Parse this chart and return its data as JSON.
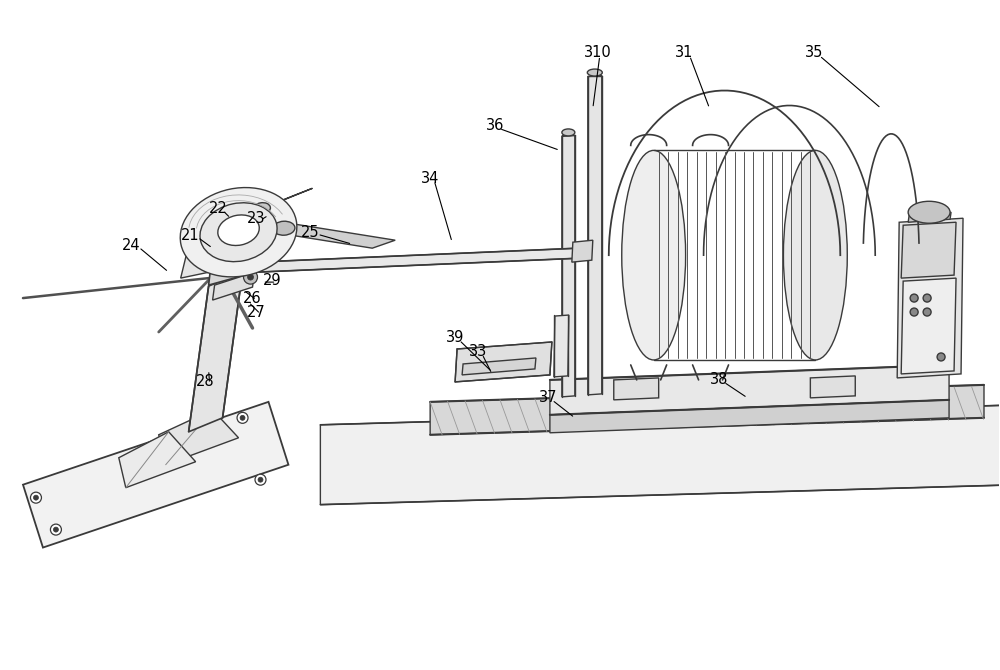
{
  "bg_color": "#ffffff",
  "line_color": "#3a3a3a",
  "lw": 1.0,
  "figsize": [
    10.0,
    6.7
  ],
  "dpi": 100,
  "labels": [
    [
      "21",
      1.9,
      4.35
    ],
    [
      "22",
      2.18,
      4.62
    ],
    [
      "23",
      2.56,
      4.52
    ],
    [
      "24",
      1.3,
      4.25
    ],
    [
      "25",
      3.1,
      4.38
    ],
    [
      "26",
      2.52,
      3.72
    ],
    [
      "27",
      2.56,
      3.58
    ],
    [
      "28",
      2.05,
      2.88
    ],
    [
      "29",
      2.72,
      3.9
    ],
    [
      "310",
      5.98,
      6.18
    ],
    [
      "31",
      6.85,
      6.18
    ],
    [
      "33",
      4.78,
      3.18
    ],
    [
      "34",
      4.3,
      4.92
    ],
    [
      "35",
      8.15,
      6.18
    ],
    [
      "36",
      4.95,
      5.45
    ],
    [
      "37",
      5.48,
      2.72
    ],
    [
      "38",
      7.2,
      2.9
    ],
    [
      "39",
      4.55,
      3.32
    ]
  ],
  "leader_lines": [
    [
      "21",
      1.97,
      4.33,
      2.12,
      4.22
    ],
    [
      "22",
      2.22,
      4.6,
      2.3,
      4.52
    ],
    [
      "23",
      2.6,
      4.5,
      2.68,
      4.55
    ],
    [
      "24",
      1.38,
      4.23,
      1.68,
      3.98
    ],
    [
      "25",
      3.17,
      4.36,
      3.52,
      4.26
    ],
    [
      "26",
      2.56,
      3.7,
      2.43,
      3.8
    ],
    [
      "27",
      2.6,
      3.56,
      2.48,
      3.68
    ],
    [
      "28",
      2.09,
      2.86,
      2.08,
      3.0
    ],
    [
      "29",
      2.76,
      3.88,
      2.62,
      3.88
    ],
    [
      "310",
      6.0,
      6.15,
      5.93,
      5.62
    ],
    [
      "31",
      6.9,
      6.15,
      7.1,
      5.62
    ],
    [
      "33",
      4.82,
      3.16,
      4.92,
      2.96
    ],
    [
      "34",
      4.34,
      4.9,
      4.52,
      4.28
    ],
    [
      "35",
      8.2,
      6.15,
      8.82,
      5.62
    ],
    [
      "36",
      4.99,
      5.42,
      5.6,
      5.2
    ],
    [
      "37",
      5.52,
      2.7,
      5.75,
      2.52
    ],
    [
      "38",
      7.24,
      2.88,
      7.48,
      2.72
    ],
    [
      "39",
      4.59,
      3.3,
      4.92,
      2.98
    ]
  ]
}
